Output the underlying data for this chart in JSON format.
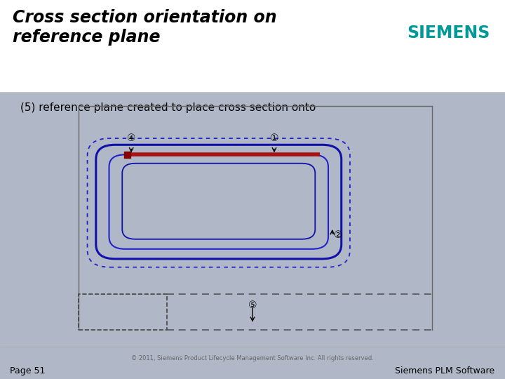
{
  "title": "Cross section orientation on\nreference plane",
  "subtitle": "(5) reference plane created to place cross section onto",
  "siemens_color": "#009999",
  "bg_color": "#b0b8c8",
  "footer_text": "© 2011, Siemens Product Lifecycle Management Software Inc. All rights reserved.",
  "page_label": "Page 51",
  "page_right": "Siemens PLM Software",
  "circle_1": "①",
  "circle_2": "②",
  "circle_4": "④",
  "circle_5": "⑤"
}
